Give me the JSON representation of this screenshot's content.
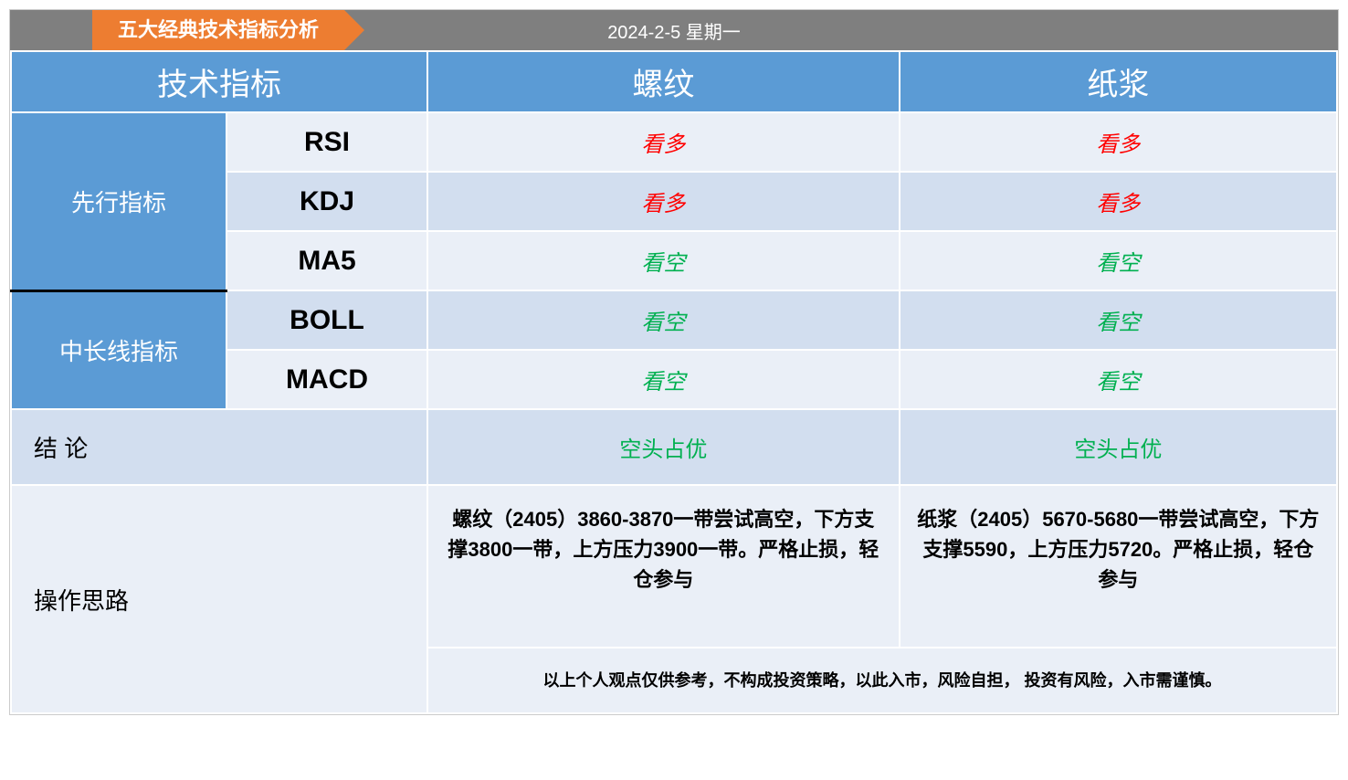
{
  "header": {
    "title": "五大经典技术指标分析",
    "date": "2024-2-5 星期一"
  },
  "columns": [
    "技术指标",
    "螺纹",
    "纸浆"
  ],
  "categories": [
    {
      "name": "先行指标",
      "indicators": [
        {
          "name": "RSI",
          "values": [
            {
              "text": "看多",
              "cls": "red"
            },
            {
              "text": "看多",
              "cls": "red"
            }
          ]
        },
        {
          "name": "KDJ",
          "values": [
            {
              "text": "看多",
              "cls": "red"
            },
            {
              "text": "看多",
              "cls": "red"
            }
          ]
        },
        {
          "name": "MA5",
          "values": [
            {
              "text": "看空",
              "cls": "green"
            },
            {
              "text": "看空",
              "cls": "green"
            }
          ]
        }
      ]
    },
    {
      "name": "中长线指标",
      "indicators": [
        {
          "name": "BOLL",
          "values": [
            {
              "text": "看空",
              "cls": "green"
            },
            {
              "text": "看空",
              "cls": "green"
            }
          ]
        },
        {
          "name": "MACD",
          "values": [
            {
              "text": "看空",
              "cls": "green"
            },
            {
              "text": "看空",
              "cls": "green"
            }
          ]
        }
      ]
    }
  ],
  "conclusion": {
    "label": "结  论",
    "values": [
      "空头占优",
      "空头占优"
    ]
  },
  "strategy": {
    "label": "操作思路",
    "values": [
      "螺纹（2405）3860-3870一带尝试高空，下方支撑3800一带，上方压力3900一带。严格止损，轻仓参与",
      "纸浆（2405）5670-5680一带尝试高空，下方支撑5590，上方压力5720。严格止损，轻仓参与"
    ]
  },
  "disclaimer": "以上个人观点仅供参考，不构成投资策略，以此入市，风险自担，\n投资有风险，入市需谨慎。",
  "style": {
    "colors": {
      "header_bar": "#7f7f7f",
      "title_tab": "#ed7d31",
      "table_header": "#5b9bd5",
      "row_light": "#eaeff7",
      "row_alt": "#d2deef",
      "bullish": "#ff0000",
      "bearish": "#00b050",
      "white": "#ffffff",
      "black": "#000000"
    },
    "font_sizes": {
      "title": 22,
      "date": 20,
      "col_header": 34,
      "category": 26,
      "indicator": 30,
      "value": 24,
      "strategy": 22,
      "disclaimer": 18
    }
  }
}
